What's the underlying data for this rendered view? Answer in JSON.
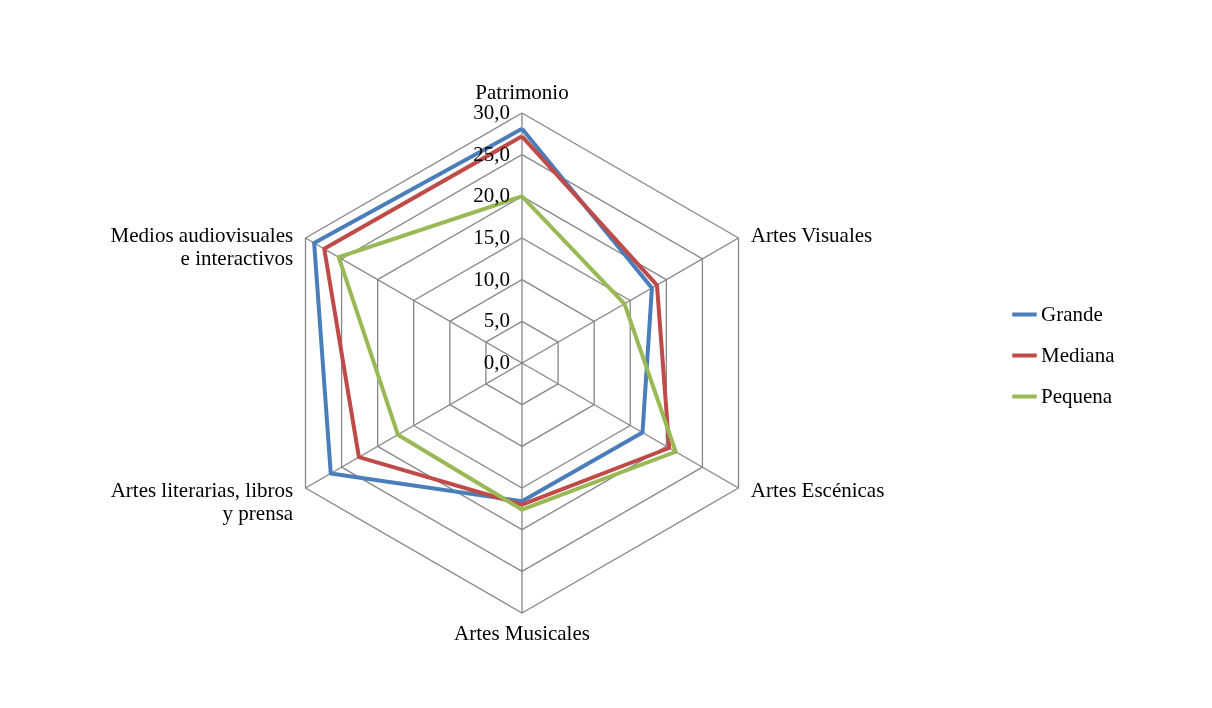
{
  "chart_data": {
    "type": "radar",
    "categories": [
      "Patrimonio",
      "Artes Visuales",
      "Artes Escénicas",
      "Artes Musicales",
      "Artes literarias, libros\ny prensa",
      "Medios audiovisuales\ne interactivos"
    ],
    "series": [
      {
        "name": "Grande",
        "color": "#4a7ebb",
        "values": [
          28.1,
          18.0,
          16.7,
          16.6,
          26.5,
          28.8
        ]
      },
      {
        "name": "Mediana",
        "color": "#be4b48",
        "values": [
          27.2,
          18.7,
          20.4,
          17.0,
          22.6,
          27.4
        ]
      },
      {
        "name": "Pequena",
        "color": "#98b954",
        "values": [
          20.0,
          14.2,
          21.3,
          17.6,
          17.2,
          25.4
        ]
      }
    ],
    "ylim": [
      0,
      30
    ],
    "yticks": [
      {
        "value": 0,
        "label": "0,0"
      },
      {
        "value": 5,
        "label": "5,0"
      },
      {
        "value": 10,
        "label": "10,0"
      },
      {
        "value": 15,
        "label": "15,0"
      },
      {
        "value": 20,
        "label": "20,0"
      },
      {
        "value": 25,
        "label": "25,0"
      },
      {
        "value": 30,
        "label": "30,0"
      }
    ],
    "grid": true,
    "legend": "right",
    "marker": "none",
    "line_style": "solid"
  }
}
